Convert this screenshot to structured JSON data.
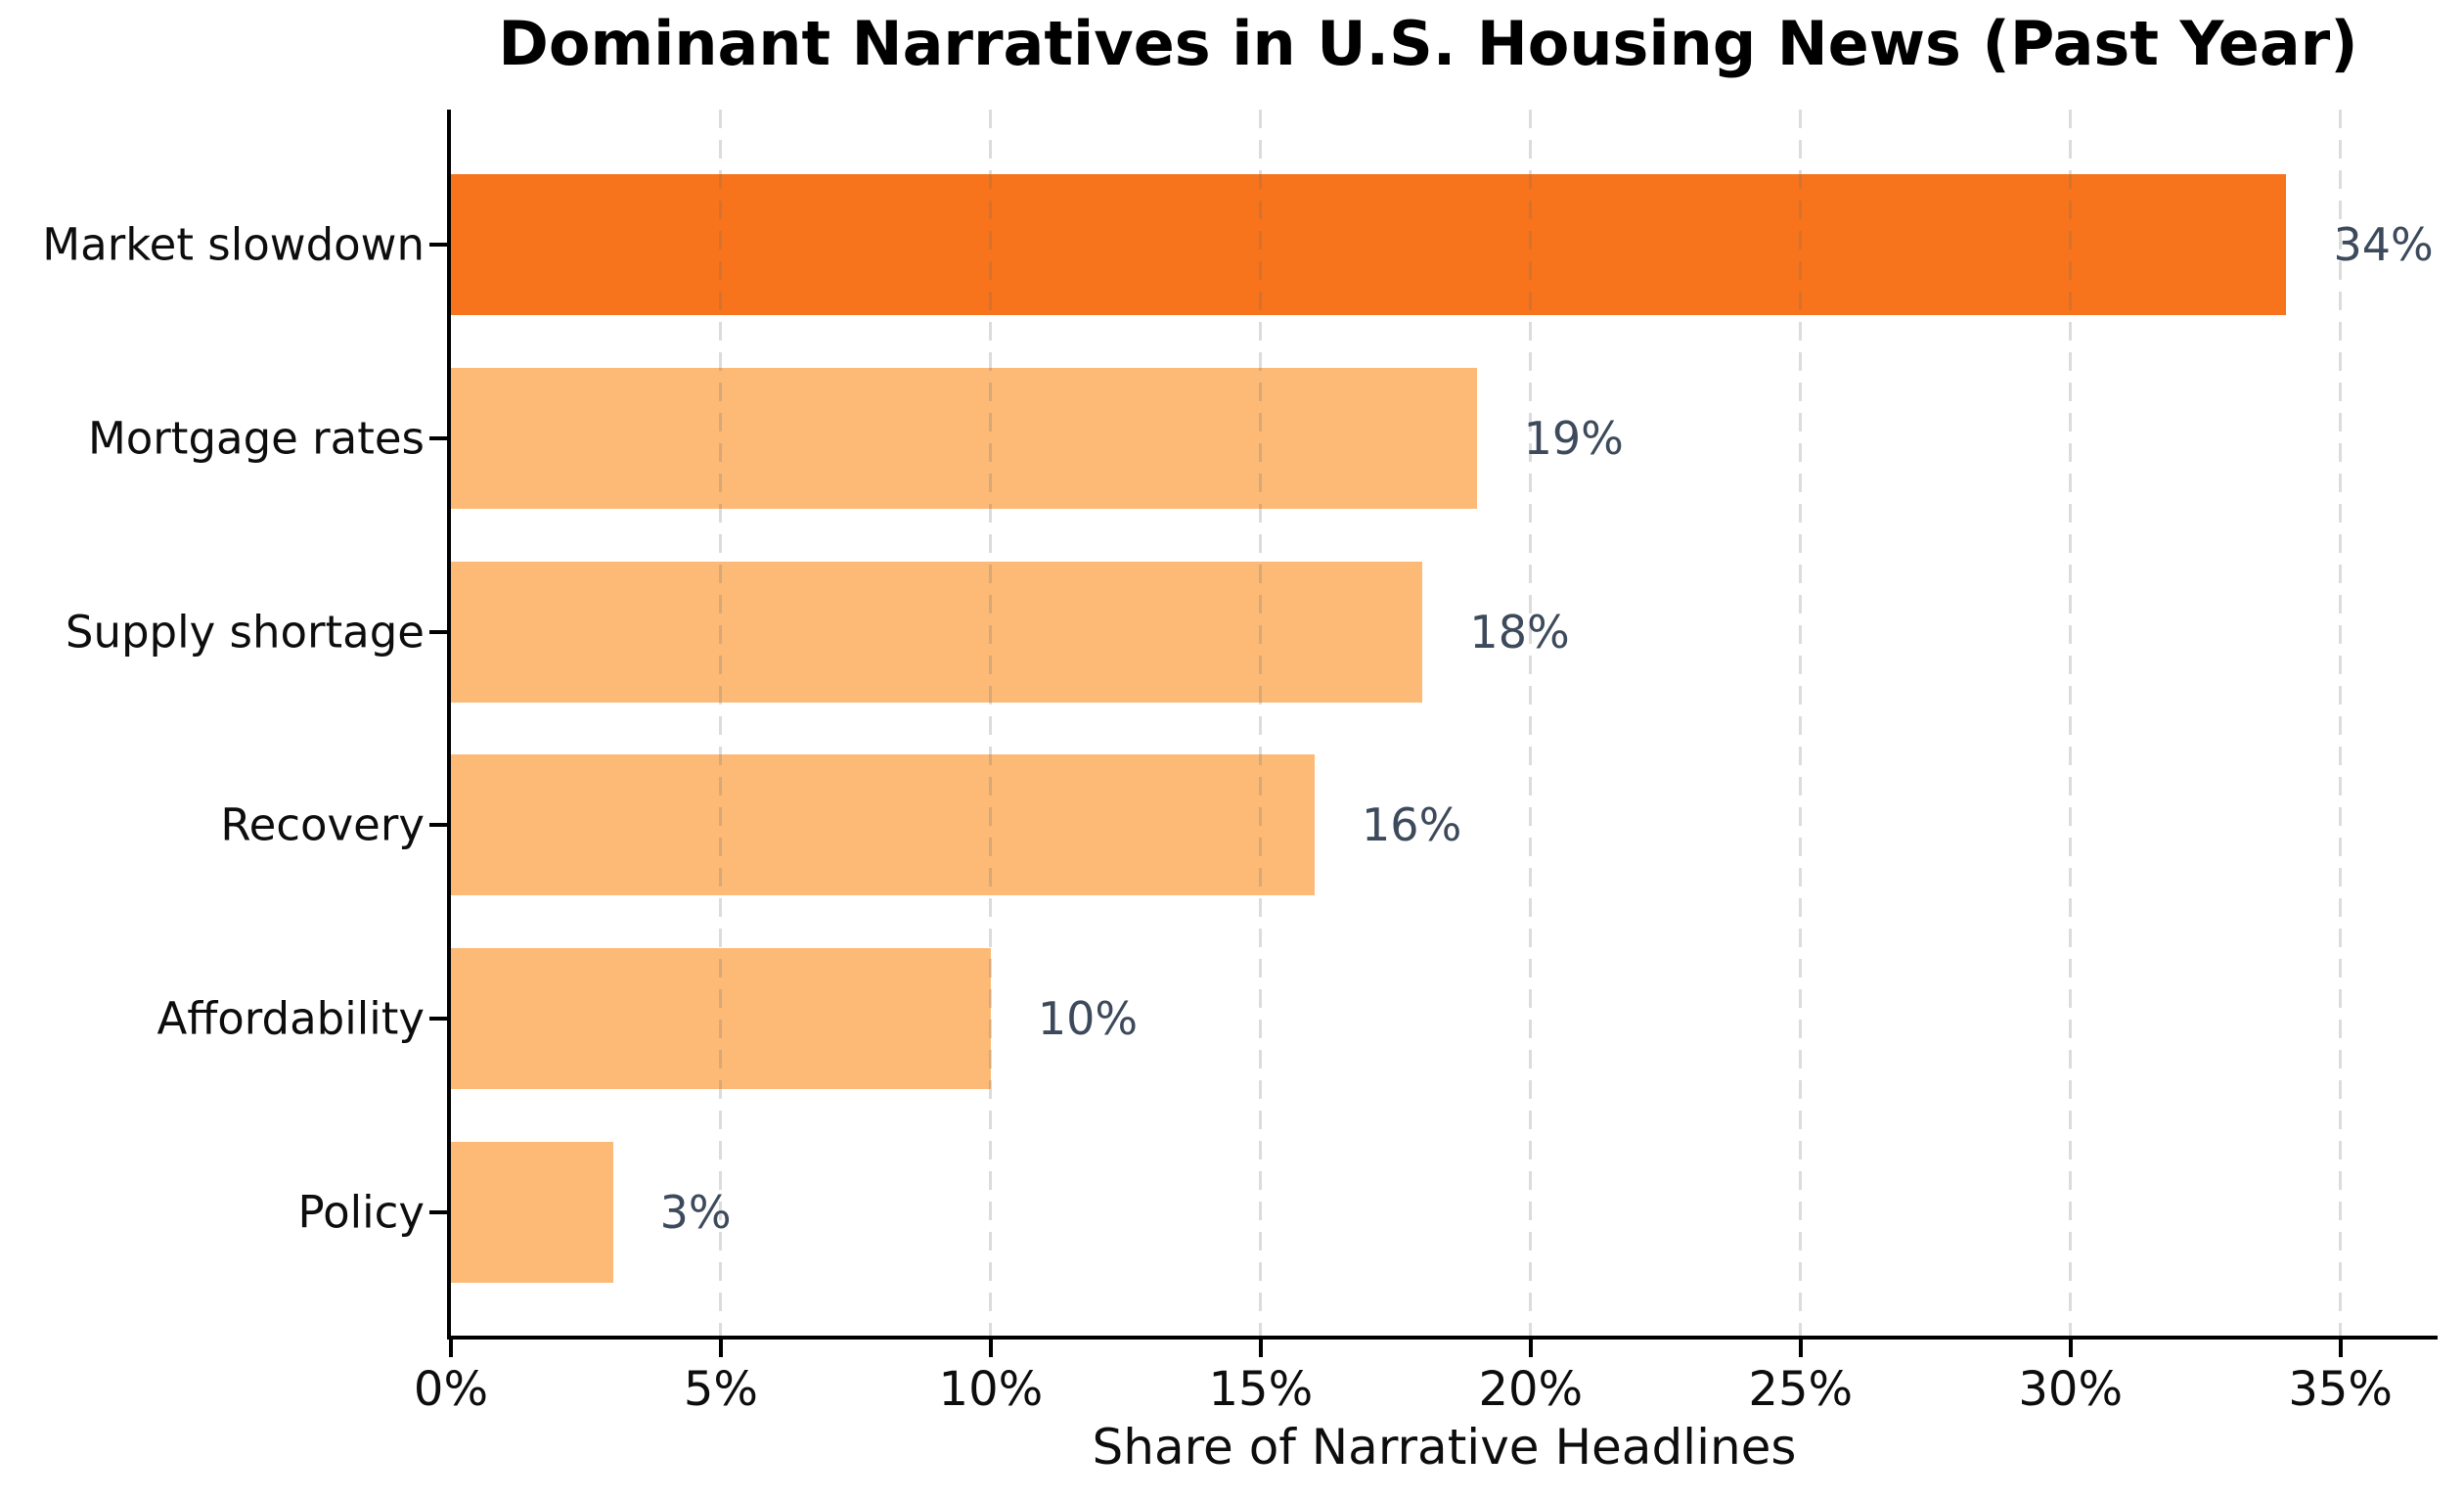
{
  "chart_data": {
    "type": "bar",
    "orientation": "horizontal",
    "title": "Dominant Narratives in U.S. Housing News (Past Year)",
    "xlabel": "Share of Narrative Headlines",
    "ylabel": "",
    "categories": [
      "Market slowdown",
      "Mortgage rates",
      "Supply shortage",
      "Recovery",
      "Affordability",
      "Policy"
    ],
    "values": [
      34,
      19,
      18,
      16,
      10,
      3
    ],
    "value_labels": [
      "34%",
      "19%",
      "18%",
      "16%",
      "10%",
      "3%"
    ],
    "bar_colors": [
      "#F7741C",
      "#FCBA76",
      "#FCBA76",
      "#FCBA76",
      "#FCBA76",
      "#FCBA76"
    ],
    "x_ticks": [
      0,
      5,
      10,
      15,
      20,
      25,
      30,
      35
    ],
    "x_tick_labels": [
      "0%",
      "5%",
      "10%",
      "15%",
      "20%",
      "25%",
      "30%",
      "35%"
    ],
    "xlim": [
      0,
      36.8
    ],
    "grid": "vertical-dashed",
    "legend": "none",
    "colors": {
      "highlight_bar": "#F7741C",
      "default_bar": "#FCBA76",
      "value_label": "#3D4A5C",
      "gridline": "#DCDCDC",
      "axis": "#000000",
      "title_text": "#000000",
      "tick_text": "#0D0D0D"
    }
  }
}
